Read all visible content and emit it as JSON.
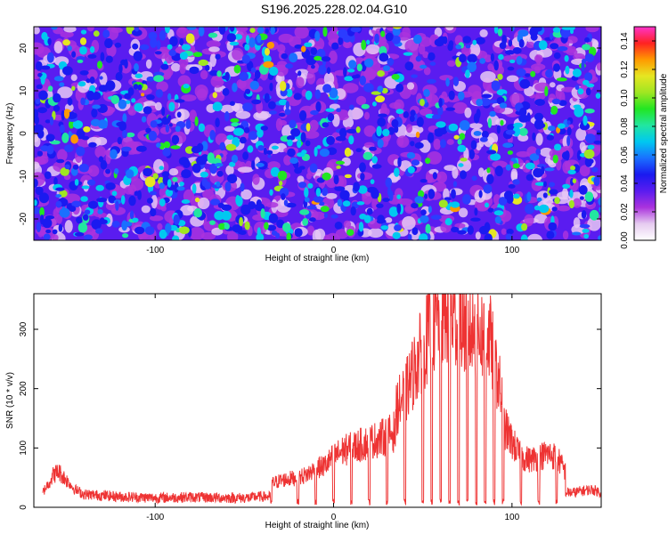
{
  "title": "S196.2025.228.02.04.G10",
  "chart_data": [
    {
      "type": "heatmap",
      "xlabel": "Height of straight line (km)",
      "ylabel": "Frequency (Hz)",
      "xlim": [
        -168,
        150
      ],
      "ylim": [
        -25,
        25
      ],
      "xticks": [
        -100,
        0,
        100
      ],
      "yticks": [
        -20,
        -10,
        0,
        10,
        20
      ],
      "colorbar": {
        "label": "Normalized spectral amplitude",
        "range": [
          0,
          0.15
        ],
        "ticks": [
          "0.00",
          "0.02",
          "0.04",
          "0.06",
          "0.08",
          "0.10",
          "0.12",
          "0.14"
        ],
        "colors": [
          "#ffffff",
          "#e6ccf0",
          "#aa33dd",
          "#5a1cf0",
          "#1a1af0",
          "#1a70ff",
          "#00c8f0",
          "#22e6a0",
          "#22e622",
          "#a0e622",
          "#e6e622",
          "#ff9900",
          "#ff2222",
          "#ff33cc"
        ]
      },
      "description_values": {
        "mean_amplitude": 0.035,
        "max_amplitude": 0.12
      }
    },
    {
      "type": "line",
      "xlabel": "Height of straight line (km)",
      "ylabel": "SNR (10 * v/v)",
      "xlim": [
        -168,
        150
      ],
      "ylim": [
        0,
        360
      ],
      "xticks": [
        -100,
        0,
        100
      ],
      "yticks": [
        0,
        100,
        200,
        300
      ],
      "color": "#ee3333",
      "segments": [
        {
          "x": [
            -163,
            -160,
            -157,
            -154,
            -151,
            -148,
            -145,
            -140,
            -130,
            -120
          ],
          "y": [
            25,
            40,
            55,
            60,
            50,
            40,
            30,
            22,
            20,
            18
          ]
        },
        {
          "x": [
            -120,
            -100,
            -80,
            -60,
            -45
          ],
          "y": [
            18,
            16,
            17,
            16,
            16
          ]
        },
        {
          "x": [
            -35,
            -30,
            -25,
            -20,
            -15,
            -10,
            -5,
            0,
            5,
            10,
            15,
            20,
            25,
            30,
            35
          ],
          "y": [
            40,
            45,
            48,
            50,
            55,
            65,
            70,
            85,
            95,
            100,
            105,
            110,
            115,
            120,
            130
          ]
        },
        {
          "x": [
            35,
            40,
            45,
            50,
            55,
            60,
            65,
            70,
            75,
            80,
            85,
            88,
            92,
            95
          ],
          "y": [
            165,
            190,
            230,
            270,
            300,
            320,
            325,
            315,
            300,
            295,
            290,
            280,
            220,
            170
          ]
        },
        {
          "x": [
            95,
            100,
            105,
            110,
            115,
            120,
            125,
            130
          ],
          "y": [
            140,
            110,
            85,
            80,
            85,
            90,
            85,
            60
          ]
        },
        {
          "x": [
            130,
            135,
            140,
            145,
            150
          ],
          "y": [
            25,
            25,
            28,
            30,
            25
          ]
        }
      ],
      "dips_x": [
        -35,
        -20,
        -10,
        0,
        10,
        20,
        30,
        40,
        50,
        55,
        60,
        65,
        70,
        75,
        80,
        85,
        90,
        95,
        105,
        115,
        125
      ]
    }
  ]
}
